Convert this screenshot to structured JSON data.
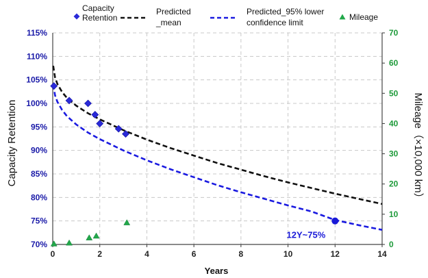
{
  "chart_data": {
    "type": "line",
    "xlabel": "Years",
    "ylabel": "Capacity Retention",
    "y2label": "Mileage（×10,000 km）",
    "xlim": [
      0,
      14
    ],
    "xticks": [
      "0",
      "2",
      "4",
      "6",
      "8",
      "10",
      "12",
      "14"
    ],
    "ylim": [
      70,
      115
    ],
    "yticks": [
      "70%",
      "75%",
      "80%",
      "85%",
      "90%",
      "95%",
      "100%",
      "105%",
      "110%",
      "115%"
    ],
    "y2lim": [
      0,
      70
    ],
    "y2ticks": [
      "0",
      "10",
      "20",
      "30",
      "40",
      "50",
      "60",
      "70"
    ],
    "grid": true,
    "legend_position": "top",
    "legend": [
      {
        "label_lines": [
          "Capacity",
          "Retention"
        ],
        "marker": "diamond-icon",
        "color": "#2a2ad8"
      },
      {
        "label_lines": [
          "Predicted",
          "_mean"
        ],
        "marker": "dash-line-icon",
        "color": "#111111"
      },
      {
        "label_lines": [
          "Predicted_95% lower",
          "confidence limit"
        ],
        "marker": "dash-line-icon",
        "color": "#1a1ae0"
      },
      {
        "label_lines": [
          "Mileage"
        ],
        "marker": "triangle-icon",
        "color": "#22a84a"
      }
    ],
    "series": [
      {
        "name": "Capacity Retention",
        "kind": "scatter",
        "axis": "left",
        "color": "#2a2ad8",
        "x": [
          0.05,
          0.7,
          1.5,
          1.8,
          2.0,
          2.8,
          3.1
        ],
        "y": [
          103.7,
          100.6,
          100.0,
          97.6,
          95.7,
          94.6,
          93.5
        ]
      },
      {
        "name": "Predicted_mean",
        "kind": "line",
        "axis": "left",
        "color": "#111111",
        "x": [
          0.02,
          0.1,
          0.2,
          0.4,
          0.6,
          1,
          1.5,
          2,
          3,
          4,
          5,
          6,
          7,
          8,
          9,
          10,
          11,
          12,
          13,
          14
        ],
        "y": [
          108.0,
          105.5,
          104.1,
          102.4,
          101.2,
          99.5,
          97.9,
          96.6,
          94.3,
          92.3,
          90.5,
          88.9,
          87.3,
          85.9,
          84.5,
          83.2,
          82.0,
          80.8,
          79.7,
          78.6
        ]
      },
      {
        "name": "Predicted_95% lower confidence limit",
        "kind": "line",
        "axis": "left",
        "color": "#1a1ae0",
        "x": [
          0.02,
          0.1,
          0.2,
          0.4,
          0.6,
          1,
          1.5,
          2,
          3,
          4,
          5,
          6,
          7,
          8,
          9,
          10,
          11,
          12,
          13,
          14
        ],
        "y": [
          104.0,
          101.7,
          100.3,
          98.6,
          97.3,
          95.5,
          93.8,
          92.4,
          90.0,
          87.9,
          86.0,
          84.3,
          82.6,
          81.1,
          79.7,
          78.3,
          77.0,
          75.2,
          74.1,
          73.1
        ]
      },
      {
        "name": "Mileage",
        "kind": "scatter",
        "axis": "right",
        "color": "#22a84a",
        "x": [
          0.05,
          0.7,
          1.55,
          1.85,
          3.15
        ],
        "y": [
          0.2,
          0.5,
          2.2,
          2.8,
          7.2
        ]
      }
    ],
    "annotations": [
      {
        "text": "12Y~75%",
        "x": 12,
        "y": 75,
        "color": "#1a1ad8"
      }
    ]
  }
}
